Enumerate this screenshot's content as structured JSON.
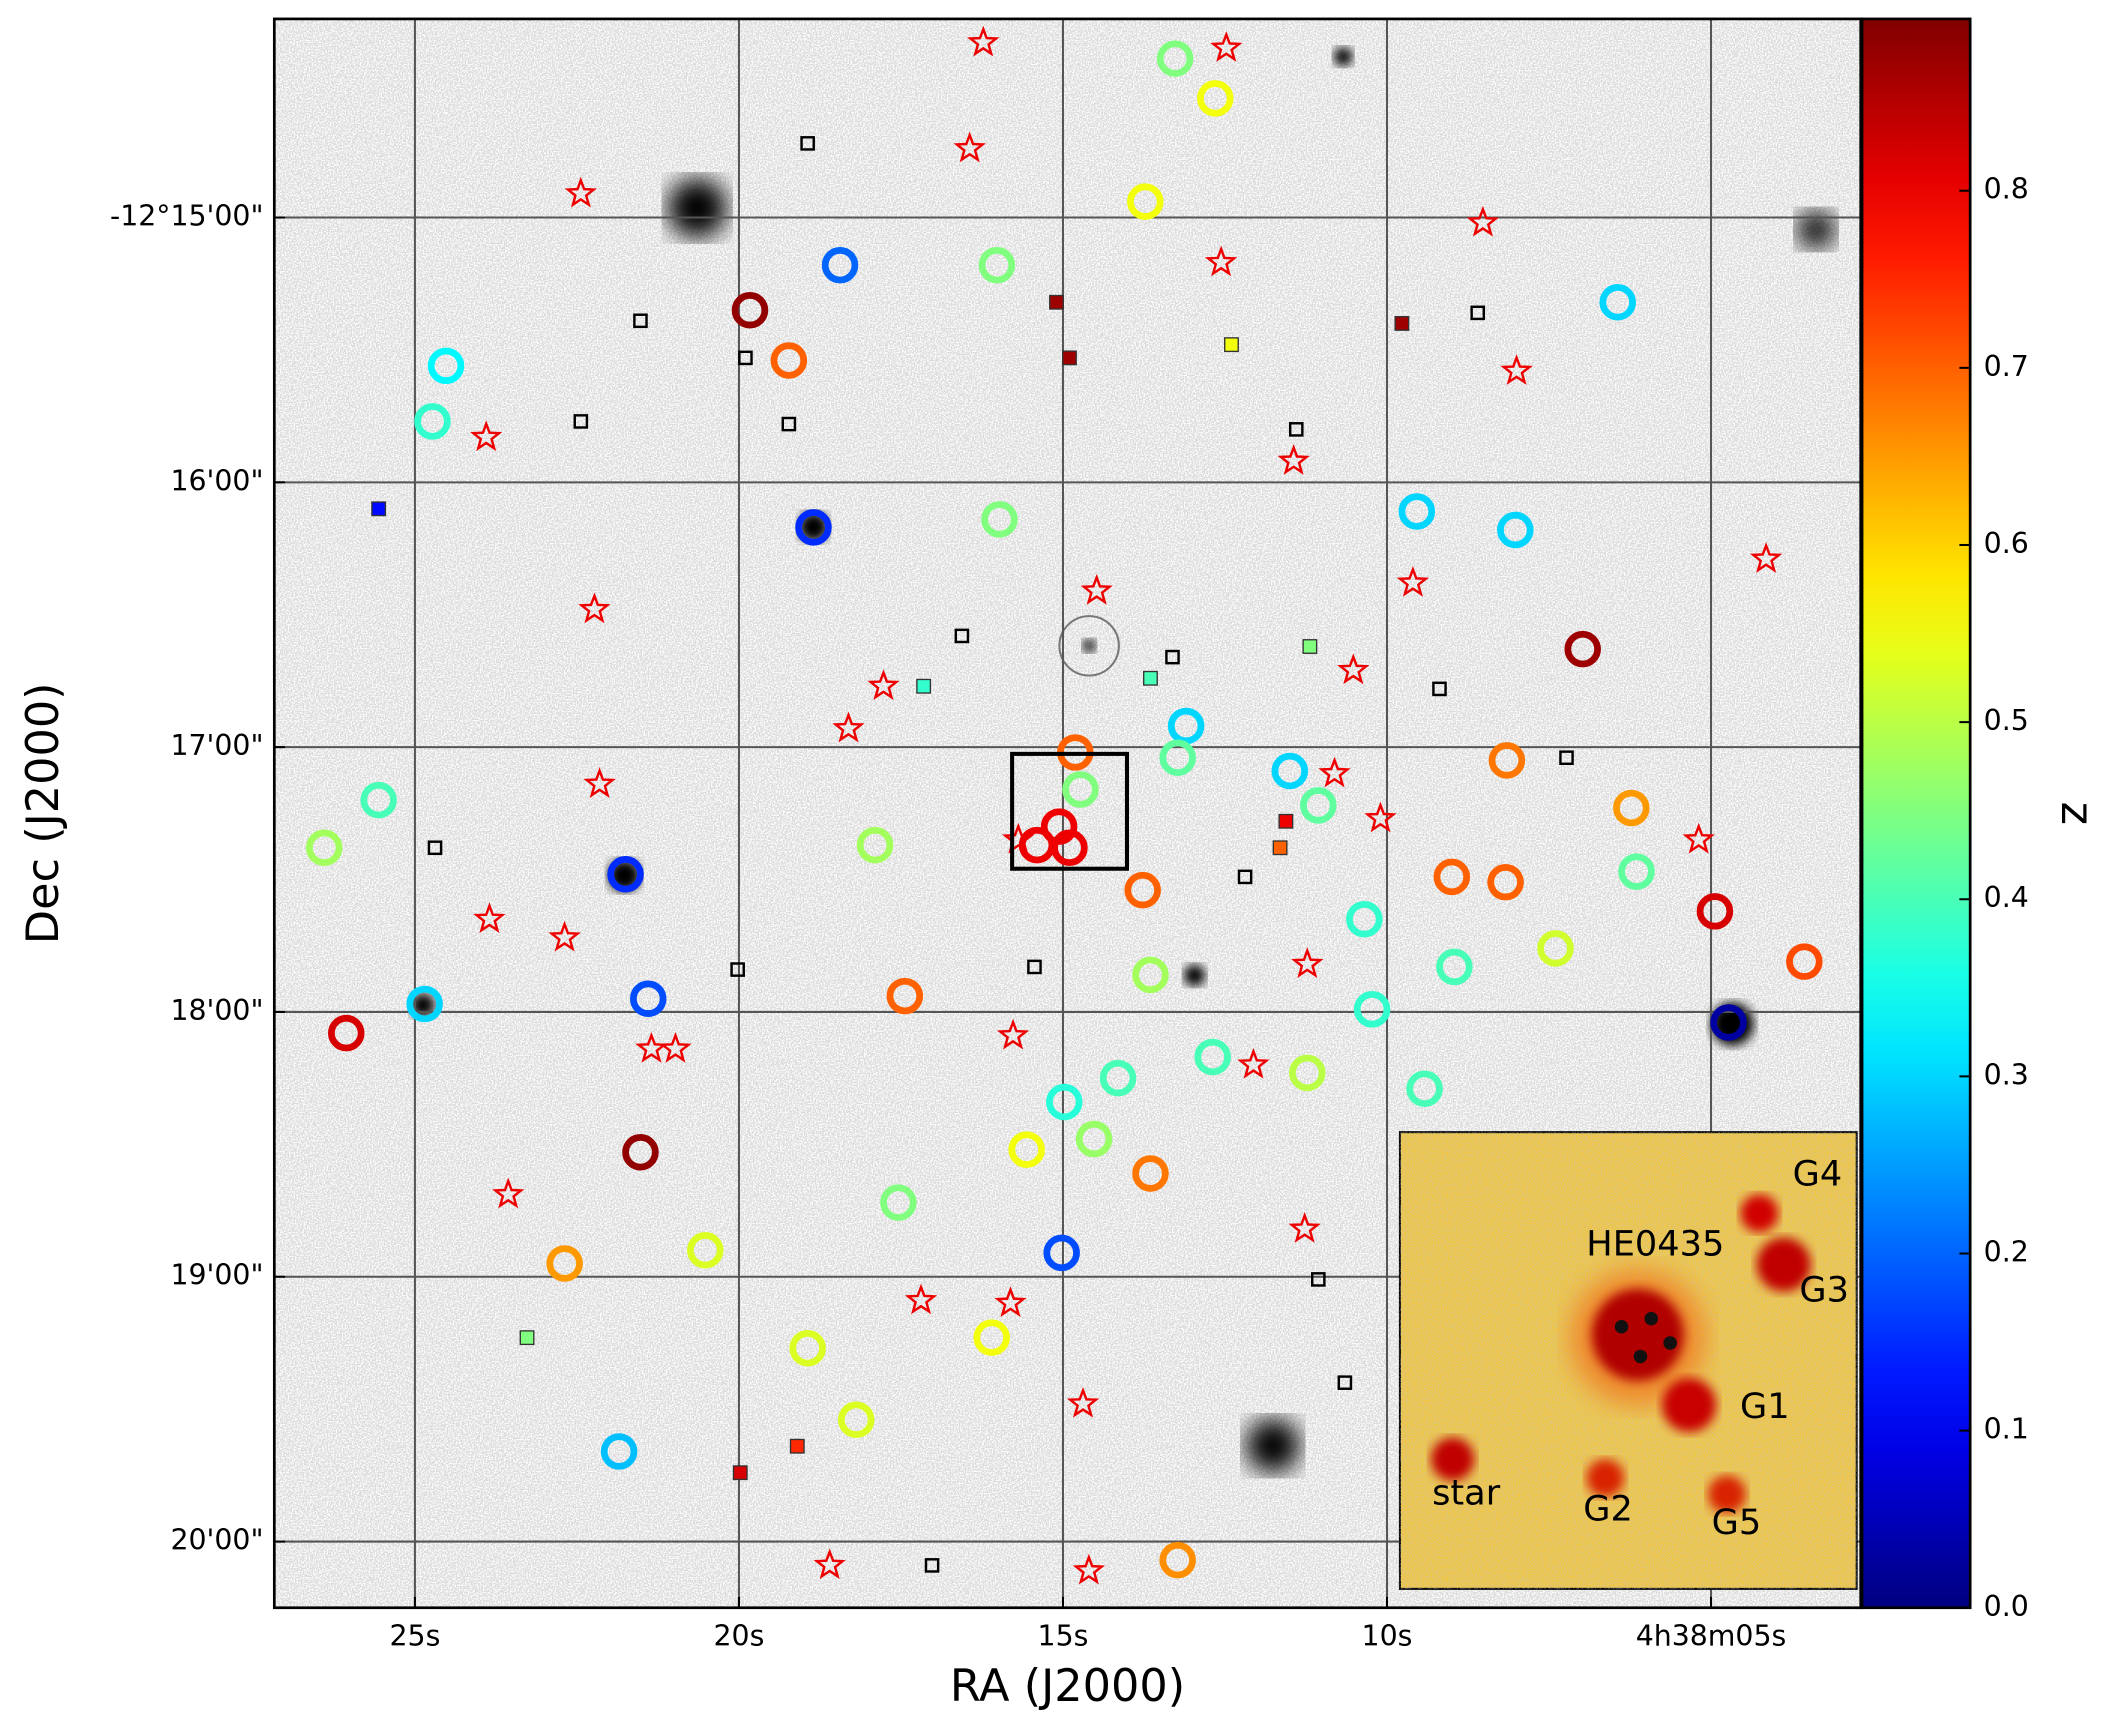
{
  "chart_data": {
    "type": "scatter",
    "x_label": "RA (J2000)",
    "y_label": "Dec (J2000)",
    "colorbar_label": "z",
    "xlim": [
      27.17,
      2.69
    ],
    "ylim": [
      -20.25,
      -14.25
    ],
    "zlim": [
      0,
      0.897
    ],
    "grid": true,
    "colormap": "jet",
    "xticks": [
      {
        "value": 25,
        "label": "25s"
      },
      {
        "value": 20,
        "label": "20s"
      },
      {
        "value": 15,
        "label": "15s"
      },
      {
        "value": 10,
        "label": "10s"
      },
      {
        "value": 5,
        "label": "4h38m05s"
      }
    ],
    "yticks": [
      {
        "value": -15,
        "label": "-12°15'00\""
      },
      {
        "value": -16,
        "label": "16'00\""
      },
      {
        "value": -17,
        "label": "17'00\""
      },
      {
        "value": -18,
        "label": "18'00\""
      },
      {
        "value": -19,
        "label": "19'00\""
      },
      {
        "value": -20,
        "label": "20'00\""
      }
    ],
    "zticks": [
      {
        "value": 0,
        "label": "0.0"
      },
      0.1,
      0.2,
      0.3,
      0.4,
      0.5,
      0.6,
      0.7,
      0.8
    ],
    "circles": {
      "x": [
        18.44,
        16.02,
        18.85,
        21.75,
        4.73,
        15.02,
        21.4,
        6.44,
        9.54,
        24.52,
        24.85,
        13.1,
        11.5,
        13.27,
        12.65,
        13.73,
        15.98,
        17.9,
        25.56,
        19.23,
        19.83,
        17.44,
        13.77,
        6.23,
        9.0,
        8.17,
        3.56,
        6.15,
        8.96,
        7.4,
        10.35,
        10.23,
        12.69,
        11.23,
        9.42,
        14.98,
        14.15,
        15.56,
        14.52,
        17.54,
        20.52,
        22.69,
        18.94,
        16.1,
        18.19,
        21.85,
        26.06,
        21.52,
        6.98,
        4.94,
        24.73,
        26.4,
        13.65,
        13.23,
        14.81,
        14.73,
        8.15,
        8.02,
        13.23,
        11.06,
        13.65,
        15.06,
        15.4,
        14.9
      ],
      "y": [
        -15.18,
        -15.18,
        -16.17,
        -17.48,
        -18.04,
        -18.91,
        -17.95,
        -15.32,
        -16.11,
        -15.56,
        -17.97,
        -16.92,
        -17.09,
        -14.4,
        -14.55,
        -14.94,
        -16.14,
        -17.37,
        -17.2,
        -15.54,
        -15.35,
        -17.94,
        -17.54,
        -17.23,
        -17.49,
        -17.51,
        -17.81,
        -17.47,
        -17.83,
        -17.76,
        -17.65,
        -17.99,
        -18.17,
        -18.23,
        -18.29,
        -18.34,
        -18.25,
        -18.52,
        -18.48,
        -18.72,
        -18.9,
        -18.95,
        -19.27,
        -19.23,
        -19.54,
        -19.66,
        -18.08,
        -18.53,
        -16.63,
        -17.62,
        -15.77,
        -17.38,
        -18.61,
        -20.07,
        -17.02,
        -17.16,
        -17.05,
        -16.18,
        -17.04,
        -17.22,
        -17.86,
        -17.3,
        -17.37,
        -17.38
      ],
      "z": [
        0.2,
        0.45,
        0.15,
        0.15,
        0.03,
        0.18,
        0.18,
        0.3,
        0.3,
        0.33,
        0.3,
        0.3,
        0.3,
        0.45,
        0.55,
        0.55,
        0.45,
        0.48,
        0.4,
        0.7,
        0.88,
        0.7,
        0.7,
        0.65,
        0.7,
        0.7,
        0.72,
        0.42,
        0.4,
        0.52,
        0.38,
        0.38,
        0.4,
        0.5,
        0.4,
        0.37,
        0.4,
        0.55,
        0.47,
        0.45,
        0.53,
        0.65,
        0.53,
        0.55,
        0.53,
        0.28,
        0.82,
        0.88,
        0.87,
        0.82,
        0.38,
        0.48,
        0.68,
        0.66,
        0.7,
        0.45,
        0.68,
        0.3,
        0.42,
        0.42,
        0.48,
        0.8,
        0.8,
        0.8
      ]
    },
    "squares": {
      "x": [
        15.1,
        14.9,
        25.56,
        17.15,
        13.65,
        11.19,
        11.56,
        11.65,
        23.27,
        19.98,
        19.1,
        9.77,
        12.4
      ],
      "y": [
        -15.32,
        -15.53,
        -16.1,
        -16.77,
        -16.74,
        -16.62,
        -17.28,
        -17.38,
        -19.23,
        -19.74,
        -19.64,
        -15.4,
        -15.48
      ],
      "z": [
        0.87,
        0.87,
        0.12,
        0.38,
        0.4,
        0.45,
        0.8,
        0.7,
        0.45,
        0.82,
        0.75,
        0.87,
        0.55
      ]
    },
    "open_squares": {
      "x": [
        18.94,
        21.52,
        19.9,
        19.23,
        22.44,
        24.69,
        20.02,
        15.44,
        16.56,
        13.31,
        12.19,
        9.19,
        11.4,
        8.6,
        7.23,
        11.06,
        10.65,
        17.02
      ],
      "y": [
        -14.72,
        -15.39,
        -15.53,
        -15.78,
        -15.77,
        -17.38,
        -17.84,
        -17.83,
        -16.58,
        -16.66,
        -17.49,
        -16.78,
        -15.8,
        -15.36,
        -17.04,
        -19.01,
        -19.4,
        -20.09
      ]
    },
    "stars": {
      "x": [
        16.23,
        12.48,
        16.44,
        22.44,
        8.52,
        12.56,
        8.0,
        23.9,
        11.44,
        14.48,
        22.23,
        9.6,
        4.15,
        10.52,
        17.77,
        18.31,
        22.15,
        10.81,
        10.1,
        5.19,
        15.69,
        23.85,
        22.69,
        11.23,
        21.35,
        20.98,
        15.77,
        12.06,
        23.56,
        11.27,
        17.19,
        15.81,
        14.69,
        18.6,
        14.6
      ],
      "y": [
        -14.34,
        -14.36,
        -14.74,
        -14.91,
        -15.02,
        -15.17,
        -15.58,
        -15.83,
        -15.92,
        -16.41,
        -16.48,
        -16.38,
        -16.29,
        -16.71,
        -16.77,
        -16.93,
        -17.14,
        -17.1,
        -17.27,
        -17.35,
        -17.35,
        -17.65,
        -17.72,
        -17.82,
        -18.14,
        -18.14,
        -18.09,
        -18.2,
        -18.69,
        -18.82,
        -19.09,
        -19.1,
        -19.48,
        -20.09,
        -20.11
      ]
    },
    "inset_labels": [
      "HE0435",
      "G4",
      "G3",
      "G1",
      "star",
      "G2",
      "G5"
    ]
  }
}
